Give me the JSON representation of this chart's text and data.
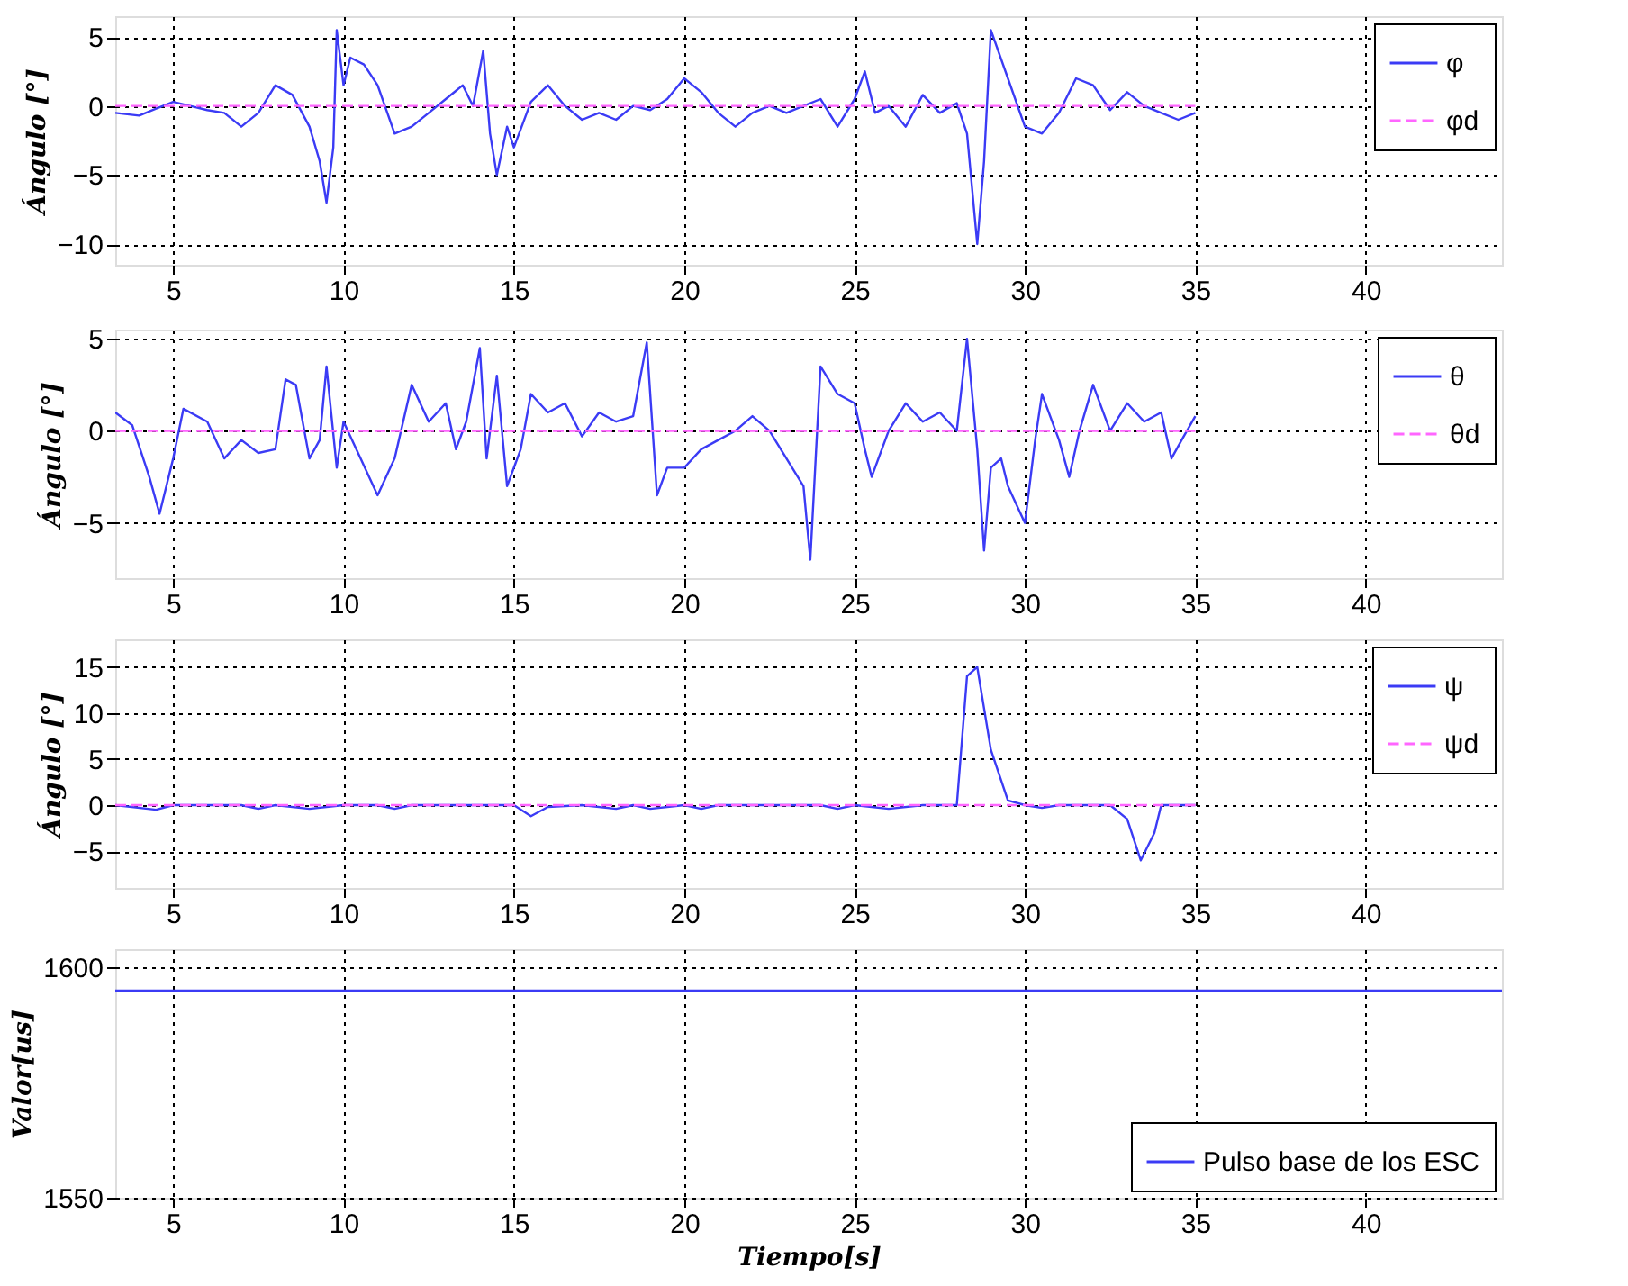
{
  "chart_data": [
    {
      "type": "line",
      "ylabel": "Ángulo [°]",
      "xlim": [
        3.3,
        44
      ],
      "xticks": [
        5,
        10,
        15,
        20,
        25,
        30,
        35,
        40
      ],
      "ylim": [
        -11.5,
        6.5
      ],
      "yticks": [
        -10,
        -5,
        0,
        5
      ],
      "grid": true,
      "legend": "top right",
      "series": [
        {
          "name": "φ",
          "color": "#3b3bf5",
          "line_style": "solid",
          "x": [
            3.3,
            4,
            4.5,
            5,
            5.5,
            6,
            6.5,
            7,
            7.5,
            8,
            8.5,
            9,
            9.3,
            9.5,
            9.7,
            9.8,
            10,
            10.2,
            10.6,
            11,
            11.5,
            12,
            12.5,
            13,
            13.5,
            13.8,
            14.1,
            14.3,
            14.5,
            14.8,
            15,
            15.5,
            16,
            16.5,
            17,
            17.5,
            18,
            18.5,
            19,
            19.5,
            20,
            20.5,
            21,
            21.5,
            22,
            22.5,
            23,
            23.5,
            24,
            24.5,
            25,
            25.3,
            25.6,
            26,
            26.5,
            27,
            27.5,
            28,
            28.3,
            28.6,
            28.8,
            29,
            29.5,
            30,
            30.5,
            31,
            31.5,
            32,
            32.5,
            33,
            33.5,
            34,
            34.5,
            35
          ],
          "values": [
            -0.5,
            -0.7,
            -0.2,
            0.3,
            0,
            -0.3,
            -0.5,
            -1.5,
            -0.5,
            1.5,
            0.8,
            -1.5,
            -4,
            -7,
            -3,
            5.5,
            1.5,
            3.5,
            3,
            1.5,
            -2,
            -1.5,
            -0.5,
            0.5,
            1.5,
            0,
            4,
            -2,
            -5,
            -1.5,
            -3,
            0.3,
            1.5,
            0,
            -1,
            -0.5,
            -1,
            0,
            -0.3,
            0.5,
            2,
            1,
            -0.5,
            -1.5,
            -0.5,
            0,
            -0.5,
            0,
            0.5,
            -1.5,
            0.5,
            2.5,
            -0.5,
            0,
            -1.5,
            0.8,
            -0.5,
            0.2,
            -2,
            -10,
            -4,
            5.5,
            2,
            -1.5,
            -2,
            -0.5,
            2,
            1.5,
            -0.3,
            1,
            0,
            -0.5,
            -1,
            -0.5
          ]
        },
        {
          "name": "φd",
          "color": "#ff66ff",
          "line_style": "dashed",
          "x": [
            3.3,
            35
          ],
          "values": [
            0,
            0
          ]
        }
      ]
    },
    {
      "type": "line",
      "ylabel": "Ángulo [°]",
      "xlim": [
        3.3,
        44
      ],
      "xticks": [
        5,
        10,
        15,
        20,
        25,
        30,
        35,
        40
      ],
      "ylim": [
        -8,
        5.5
      ],
      "yticks": [
        -5,
        0,
        5
      ],
      "grid": true,
      "legend": "top right",
      "series": [
        {
          "name": "θ",
          "color": "#3b3bf5",
          "line_style": "solid",
          "x": [
            3.3,
            3.8,
            4.3,
            4.6,
            5,
            5.3,
            6,
            6.5,
            7,
            7.5,
            8,
            8.3,
            8.6,
            9,
            9.3,
            9.5,
            9.8,
            10,
            10.5,
            11,
            11.5,
            12,
            12.5,
            13,
            13.3,
            13.6,
            14,
            14.2,
            14.5,
            14.8,
            15.2,
            15.5,
            16,
            16.5,
            17,
            17.5,
            18,
            18.5,
            18.9,
            19.2,
            19.5,
            20,
            20.5,
            21,
            21.5,
            22,
            22.5,
            23,
            23.5,
            23.7,
            24,
            24.5,
            25,
            25.3,
            25.5,
            26,
            26.5,
            27,
            27.5,
            28,
            28.3,
            28.6,
            28.8,
            29,
            29.3,
            29.5,
            30,
            30.3,
            30.5,
            31,
            31.3,
            31.6,
            32,
            32.5,
            33,
            33.5,
            34,
            34.3,
            34.6,
            35
          ],
          "values": [
            1,
            0.3,
            -2.5,
            -4.5,
            -1.5,
            1.2,
            0.5,
            -1.5,
            -0.5,
            -1.2,
            -1,
            2.8,
            2.5,
            -1.5,
            -0.5,
            3.5,
            -2,
            0.5,
            -1.5,
            -3.5,
            -1.5,
            2.5,
            0.5,
            1.5,
            -1,
            0.5,
            4.5,
            -1.5,
            3,
            -3,
            -1,
            2,
            1,
            1.5,
            -0.3,
            1,
            0.5,
            0.8,
            4.8,
            -3.5,
            -2,
            -2,
            -1,
            -0.5,
            0,
            0.8,
            0,
            -1.5,
            -3,
            -7,
            3.5,
            2,
            1.5,
            -1,
            -2.5,
            0,
            1.5,
            0.5,
            1,
            0,
            5,
            -1,
            -6.5,
            -2,
            -1.5,
            -3,
            -5,
            -0.5,
            2,
            -0.5,
            -2.5,
            0,
            2.5,
            0,
            1.5,
            0.5,
            1,
            -1.5,
            -0.5,
            0.8
          ]
        },
        {
          "name": "θd",
          "color": "#ff66ff",
          "line_style": "dashed",
          "x": [
            3.3,
            35
          ],
          "values": [
            0,
            0
          ]
        }
      ]
    },
    {
      "type": "line",
      "ylabel": "Ángulo [°]",
      "xlim": [
        3.3,
        44
      ],
      "xticks": [
        5,
        10,
        15,
        20,
        25,
        30,
        35,
        40
      ],
      "ylim": [
        -9,
        18
      ],
      "yticks": [
        -5,
        0,
        5,
        10,
        15
      ],
      "grid": true,
      "legend": "top right",
      "series": [
        {
          "name": "ψ",
          "color": "#3b3bf5",
          "line_style": "solid",
          "x": [
            3.3,
            4.5,
            5,
            7,
            7.5,
            8,
            9,
            10,
            11,
            11.5,
            12,
            15,
            15.5,
            16,
            17,
            18,
            18.5,
            19,
            20,
            20.5,
            21,
            24,
            24.5,
            25,
            26,
            27,
            28,
            28.3,
            28.6,
            29,
            29.5,
            30,
            30.5,
            31,
            32.5,
            33,
            33.4,
            33.8,
            34,
            35
          ],
          "values": [
            0,
            -0.5,
            0,
            0,
            -0.4,
            0,
            -0.4,
            0,
            0,
            -0.4,
            0,
            0,
            -1.2,
            -0.2,
            0,
            -0.4,
            0,
            -0.4,
            0,
            -0.4,
            0,
            0,
            -0.4,
            0,
            -0.4,
            0,
            0,
            14,
            15,
            6,
            0.5,
            0,
            -0.3,
            0,
            0,
            -1.5,
            -6,
            -3,
            0,
            0
          ]
        },
        {
          "name": "ψd",
          "color": "#ff66ff",
          "line_style": "dashed",
          "x": [
            3.3,
            35
          ],
          "values": [
            0,
            0
          ]
        }
      ]
    },
    {
      "type": "line",
      "ylabel": "Valor[us]",
      "xlabel": "Tiempo[s]",
      "xlim": [
        3.3,
        44
      ],
      "xticks": [
        5,
        10,
        15,
        20,
        25,
        30,
        35,
        40
      ],
      "ylim": [
        1550,
        1604
      ],
      "yticks": [
        1550,
        1600
      ],
      "grid": true,
      "legend": "bottom right",
      "series": [
        {
          "name": "Pulso base de los ESC",
          "color": "#3b3bf5",
          "line_style": "solid",
          "x": [
            3.3,
            44
          ],
          "values": [
            1595,
            1595
          ]
        }
      ]
    }
  ]
}
